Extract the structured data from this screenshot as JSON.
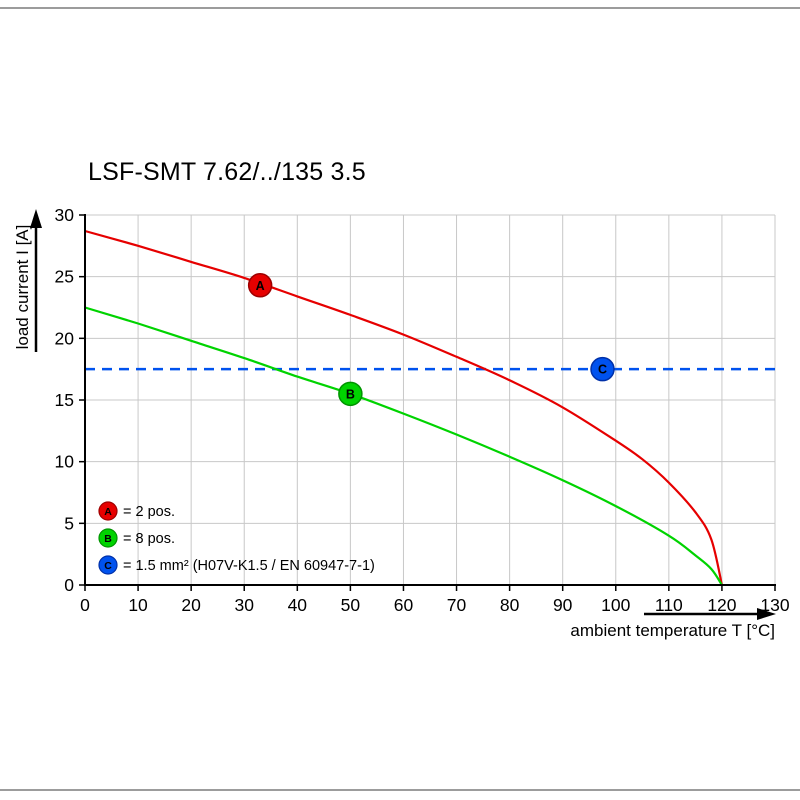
{
  "chart_data": {
    "type": "line",
    "title": "LSF-SMT 7.62/../135 3.5",
    "xlabel": "ambient temperature T [°C]",
    "ylabel": "load current I [A]",
    "xlim": [
      0,
      130
    ],
    "ylim": [
      0,
      30
    ],
    "xticks": [
      0,
      10,
      20,
      30,
      40,
      50,
      60,
      70,
      80,
      90,
      100,
      110,
      120,
      130
    ],
    "yticks": [
      0,
      5,
      10,
      15,
      20,
      25,
      30
    ],
    "grid": true,
    "grid_color": "#c8c8c8",
    "legend_position": "bottom-left",
    "series": [
      {
        "name": "A",
        "label": "= 2 pos.",
        "color": "#e60000",
        "color_dark": "#9e0000",
        "points": [
          [
            0,
            28.7
          ],
          [
            10,
            27.5
          ],
          [
            20,
            26.2
          ],
          [
            30,
            24.9
          ],
          [
            40,
            23.4
          ],
          [
            50,
            21.9
          ],
          [
            60,
            20.3
          ],
          [
            70,
            18.5
          ],
          [
            80,
            16.6
          ],
          [
            90,
            14.4
          ],
          [
            100,
            11.7
          ],
          [
            105,
            10.2
          ],
          [
            110,
            8.3
          ],
          [
            115,
            5.9
          ],
          [
            118,
            3.7
          ],
          [
            120,
            0
          ]
        ],
        "marker": {
          "x": 33,
          "y": 24.3
        }
      },
      {
        "name": "B",
        "label": "= 8 pos.",
        "color": "#00d300",
        "color_dark": "#009400",
        "points": [
          [
            0,
            22.5
          ],
          [
            10,
            21.2
          ],
          [
            20,
            19.8
          ],
          [
            30,
            18.4
          ],
          [
            40,
            16.9
          ],
          [
            50,
            15.5
          ],
          [
            60,
            13.9
          ],
          [
            70,
            12.2
          ],
          [
            80,
            10.4
          ],
          [
            90,
            8.5
          ],
          [
            100,
            6.4
          ],
          [
            110,
            4.0
          ],
          [
            115,
            2.4
          ],
          [
            118,
            1.3
          ],
          [
            120,
            0
          ]
        ],
        "marker": {
          "x": 50,
          "y": 15.5
        }
      }
    ],
    "reference_line": {
      "name": "C",
      "label": "= 1.5 mm² (H07V-K1.5 / EN 60947-7-1)",
      "value": 17.5,
      "style": "dashed",
      "color": "#0052ee",
      "color_dark": "#0030a8",
      "marker": {
        "x": 97.5,
        "y": 17.5
      }
    }
  }
}
